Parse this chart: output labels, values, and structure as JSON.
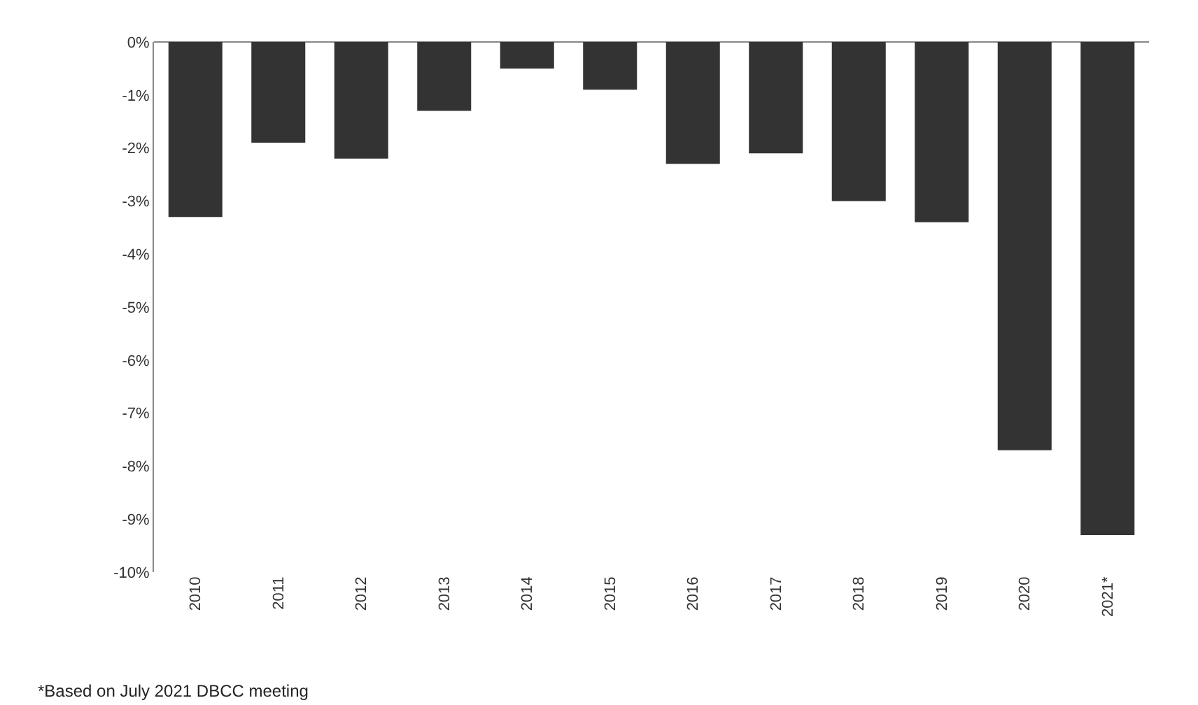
{
  "chart_data": {
    "type": "bar",
    "categories": [
      "2010",
      "2011",
      "2012",
      "2013",
      "2014",
      "2015",
      "2016",
      "2017",
      "2018",
      "2019",
      "2020",
      "2021*"
    ],
    "values": [
      -3.3,
      -1.9,
      -2.2,
      -1.3,
      -0.5,
      -0.9,
      -2.3,
      -2.1,
      -3.0,
      -3.4,
      -7.7,
      -9.3
    ],
    "color": "#333333",
    "ylim": [
      -10,
      0
    ],
    "yticks": [
      {
        "value": 0,
        "label": "0%"
      },
      {
        "value": -1,
        "label": "-1%"
      },
      {
        "value": -2,
        "label": "-2%"
      },
      {
        "value": -3,
        "label": "-3%"
      },
      {
        "value": -4,
        "label": "-4%"
      },
      {
        "value": -5,
        "label": "-5%"
      },
      {
        "value": -6,
        "label": "-6%"
      },
      {
        "value": -7,
        "label": "-7%"
      },
      {
        "value": -8,
        "label": "-8%"
      },
      {
        "value": -9,
        "label": "-9%"
      },
      {
        "value": -10,
        "label": "-10%"
      }
    ],
    "annotations": [
      "*Based on July 2021 DBCC meeting"
    ]
  }
}
